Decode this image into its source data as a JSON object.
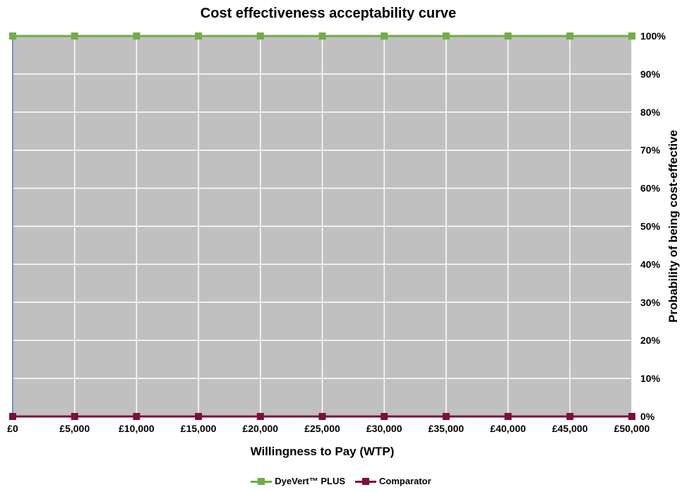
{
  "chart_data": {
    "type": "line",
    "title": "Cost effectiveness acceptability curve",
    "xlabel": "Willingness to Pay (WTP)",
    "ylabel": "Probability of being cost-effective",
    "x": [
      0,
      5000,
      10000,
      15000,
      20000,
      25000,
      30000,
      35000,
      40000,
      45000,
      50000
    ],
    "x_tick_labels": [
      "£0",
      "£5,000",
      "£10,000",
      "£15,000",
      "£20,000",
      "£25,000",
      "£30,000",
      "£35,000",
      "£40,000",
      "£45,000",
      "£50,000"
    ],
    "y_tick_labels": [
      "0%",
      "10%",
      "20%",
      "30%",
      "40%",
      "50%",
      "60%",
      "70%",
      "80%",
      "90%",
      "100%"
    ],
    "xlim": [
      0,
      50000
    ],
    "ylim": [
      0,
      1
    ],
    "y_axis_side": "right",
    "grid": true,
    "plot_background": "#c0c0c0",
    "legend_position": "bottom",
    "series": [
      {
        "name": "DyeVert™ PLUS",
        "color": "#70ad47",
        "values": [
          1,
          1,
          1,
          1,
          1,
          1,
          1,
          1,
          1,
          1,
          1
        ]
      },
      {
        "name": "Comparator",
        "color": "#7b0f3f",
        "values": [
          0,
          0,
          0,
          0,
          0,
          0,
          0,
          0,
          0,
          0,
          0
        ]
      }
    ]
  }
}
